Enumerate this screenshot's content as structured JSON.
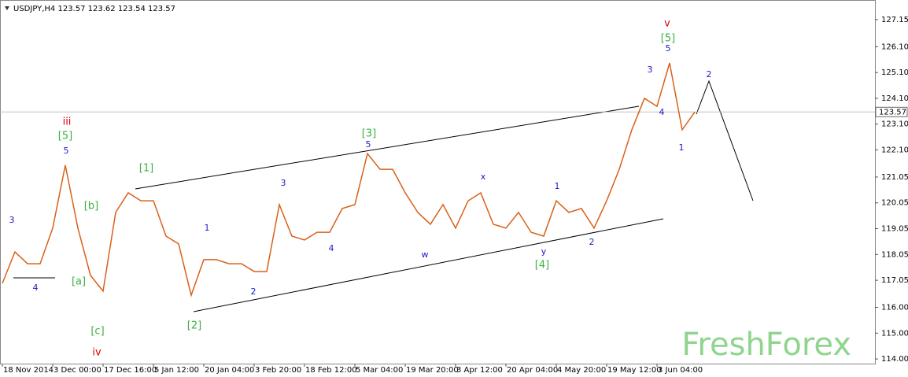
{
  "chart_data": {
    "type": "line",
    "title": "USDJPY,H4  123.57 123.62 123.54 123.57",
    "watermark": "FreshForex",
    "categories": [
      "18 Nov 2014",
      null,
      null,
      null,
      "3 Dec 00:00",
      null,
      null,
      null,
      "17 Dec 16:00",
      null,
      null,
      null,
      "5 Jan 12:00",
      null,
      null,
      null,
      "20 Jan 04:00",
      null,
      null,
      null,
      "3 Feb 20:00",
      null,
      null,
      null,
      "18 Feb 12:00",
      null,
      null,
      null,
      "5 Mar 04:00",
      null,
      null,
      null,
      "19 Mar 20:00",
      null,
      null,
      null,
      "3 Apr 12:00",
      null,
      null,
      null,
      "20 Apr 04:00",
      null,
      null,
      null,
      "4 May 20:00",
      null,
      null,
      null,
      "19 May 12:00",
      null,
      null,
      null,
      "3 Jun 04:00",
      null,
      null,
      null
    ],
    "values": [
      116.93,
      118.15,
      117.69,
      117.69,
      119.07,
      121.51,
      119.07,
      117.24,
      116.63,
      119.68,
      120.44,
      120.13,
      120.13,
      118.76,
      118.46,
      116.47,
      117.85,
      117.85,
      117.69,
      117.69,
      117.39,
      117.39,
      119.98,
      118.76,
      118.61,
      118.91,
      118.91,
      119.83,
      119.98,
      121.96,
      121.35,
      121.35,
      120.44,
      119.68,
      119.22,
      119.98,
      119.07,
      120.13,
      120.44,
      119.22,
      119.07,
      119.68,
      118.91,
      118.76,
      120.13,
      119.68,
      119.83,
      119.07,
      120.13,
      121.35,
      122.88,
      124.1,
      123.79,
      125.47,
      122.88,
      123.57
    ],
    "color": "#d9601a",
    "current_price": 123.57,
    "ylim": [
      113.82,
      127.91
    ],
    "yticks": [
      127.15,
      {
        "value": 126.1,
        "label": "126.10"
      },
      {
        "value": 125.1,
        "label": "125.10"
      },
      {
        "value": 124.1,
        "label": "124.10"
      },
      {
        "value": 123.1,
        "label": "123.10"
      },
      {
        "value": 122.1,
        "label": "122.10"
      },
      121.05,
      120.05,
      119.05,
      118.05,
      117.05,
      {
        "value": 116,
        "label": "116.00"
      },
      {
        "value": 115,
        "label": "115.00"
      },
      {
        "value": 114,
        "label": "114.00"
      }
    ],
    "annotations": [
      {
        "text": "iii",
        "color": "#e00000"
      },
      {
        "text": "[5]",
        "color": "#3cb043"
      },
      {
        "text": "5",
        "color": "#1a1acc"
      },
      {
        "text": "3",
        "color": "#1a1acc"
      },
      {
        "text": "4",
        "color": "#1a1acc"
      },
      {
        "text": "[b]",
        "color": "#3cb043"
      },
      {
        "text": "[a]",
        "color": "#3cb043"
      },
      {
        "text": "[c]",
        "color": "#3cb043"
      },
      {
        "text": "iv",
        "color": "#e00000"
      },
      {
        "text": "[1]",
        "color": "#3cb043"
      },
      {
        "text": "1",
        "color": "#1a1acc"
      },
      {
        "text": "[2]",
        "color": "#3cb043"
      },
      {
        "text": "2",
        "color": "#1a1acc"
      },
      {
        "text": "3",
        "color": "#1a1acc"
      },
      {
        "text": "4",
        "color": "#1a1acc"
      },
      {
        "text": "[3]",
        "color": "#3cb043"
      },
      {
        "text": "5",
        "color": "#1a1acc"
      },
      {
        "text": "w",
        "color": "#1a1acc"
      },
      {
        "text": "x",
        "color": "#1a1acc"
      },
      {
        "text": "y",
        "color": "#1a1acc"
      },
      {
        "text": "[4]",
        "color": "#3cb043"
      },
      {
        "text": "1",
        "color": "#1a1acc"
      },
      {
        "text": "2",
        "color": "#1a1acc"
      },
      {
        "text": "3",
        "color": "#1a1acc"
      },
      {
        "text": "4",
        "color": "#1a1acc"
      },
      {
        "text": "5",
        "color": "#1a1acc"
      },
      {
        "text": "[5]",
        "color": "#3cb043"
      },
      {
        "text": "v",
        "color": "#e00000"
      },
      {
        "text": "1",
        "color": "#1a1acc"
      },
      {
        "text": "2",
        "color": "#1a1acc"
      }
    ]
  }
}
